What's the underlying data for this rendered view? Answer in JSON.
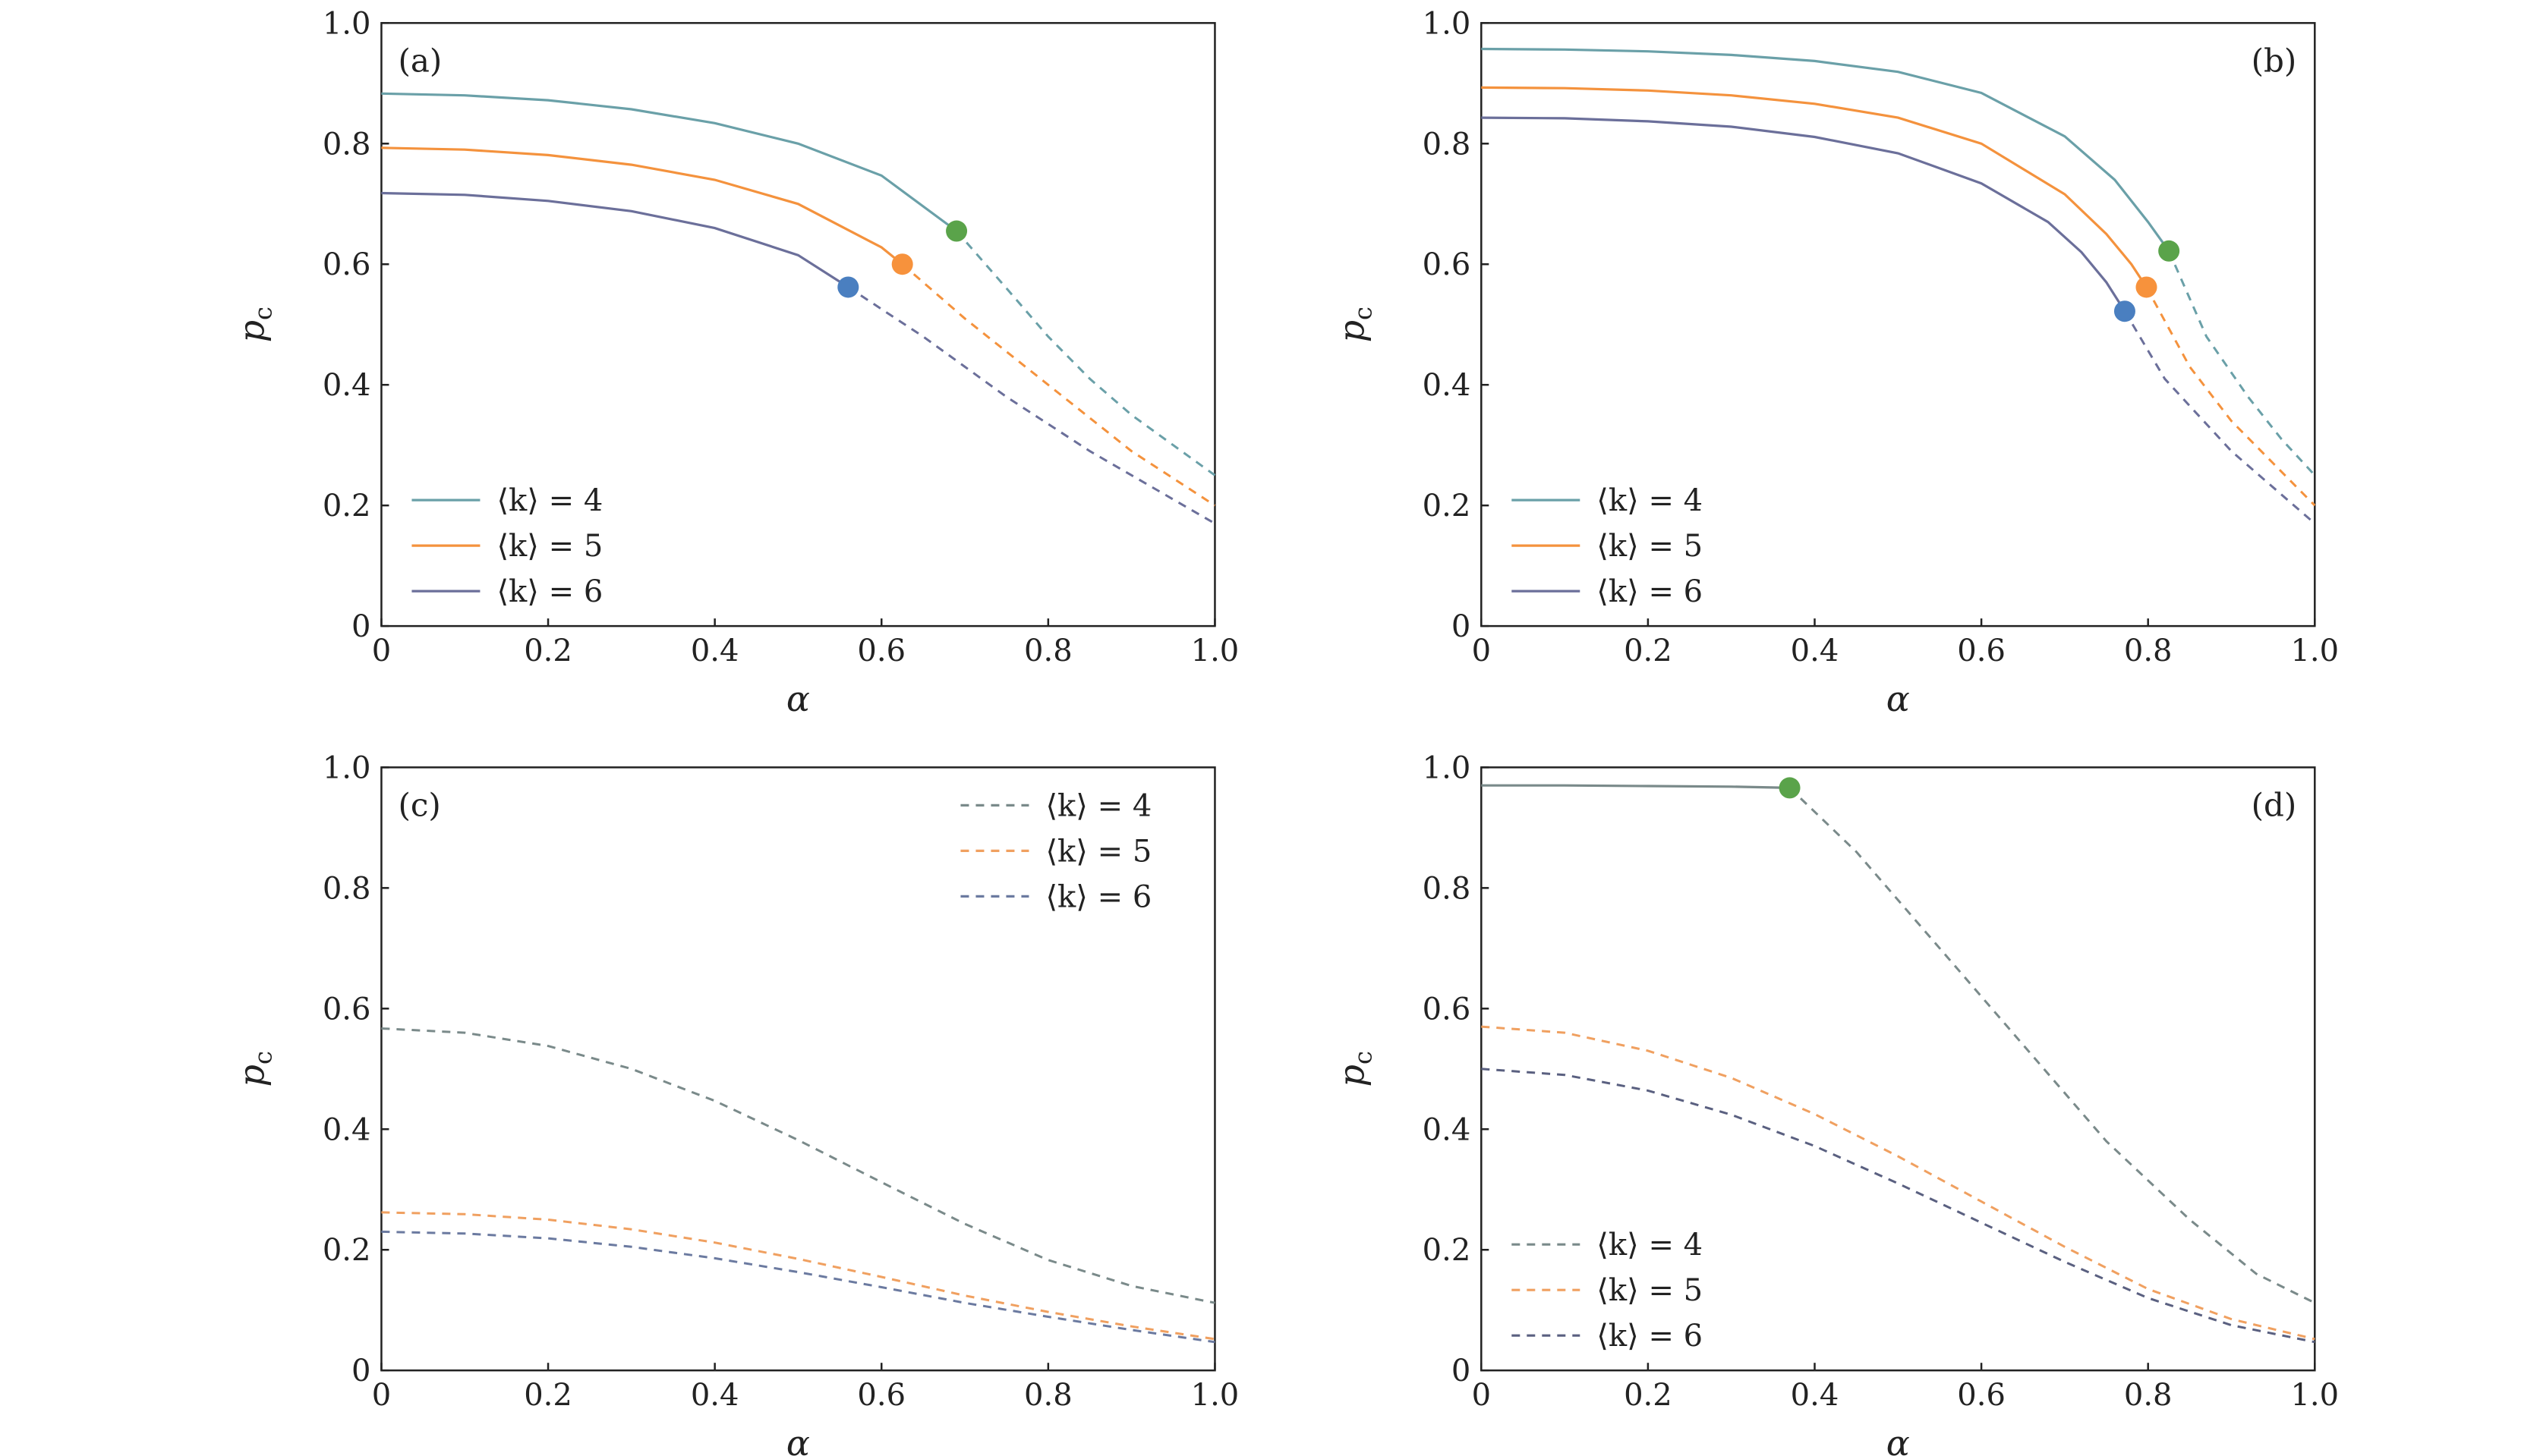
{
  "chart_data": [
    {
      "type": "line",
      "panel_label": "(a)",
      "xlabel": "α",
      "ylabel": "p",
      "ylabel_sub": "c",
      "xlim": [
        0,
        1.0
      ],
      "ylim": [
        0,
        1.0
      ],
      "xticks": [
        "0",
        "0.2",
        "0.4",
        "0.6",
        "0.8",
        "1.0"
      ],
      "yticks": [
        "0",
        "0.2",
        "0.4",
        "0.6",
        "0.8",
        "1.0"
      ],
      "legend_position": "bottom-left",
      "series": [
        {
          "name": "⟨k⟩ = 4",
          "color": "#6aa0a8",
          "solid": [
            [
              0,
              0.883
            ],
            [
              0.1,
              0.88
            ],
            [
              0.2,
              0.872
            ],
            [
              0.3,
              0.857
            ],
            [
              0.4,
              0.834
            ],
            [
              0.5,
              0.8
            ],
            [
              0.6,
              0.747
            ],
            [
              0.69,
              0.655
            ]
          ],
          "dashed": [
            [
              0.69,
              0.655
            ],
            [
              0.75,
              0.56
            ],
            [
              0.8,
              0.48
            ],
            [
              0.85,
              0.41
            ],
            [
              0.9,
              0.35
            ],
            [
              0.95,
              0.3
            ],
            [
              1.0,
              0.25
            ]
          ],
          "marker": {
            "x": 0.69,
            "y": 0.655,
            "color": "#5aa34a"
          }
        },
        {
          "name": "⟨k⟩ = 5",
          "color": "#f4923d",
          "solid": [
            [
              0,
              0.793
            ],
            [
              0.1,
              0.79
            ],
            [
              0.2,
              0.781
            ],
            [
              0.3,
              0.765
            ],
            [
              0.4,
              0.74
            ],
            [
              0.5,
              0.7
            ],
            [
              0.6,
              0.628
            ],
            [
              0.625,
              0.6
            ]
          ],
          "dashed": [
            [
              0.625,
              0.6
            ],
            [
              0.7,
              0.51
            ],
            [
              0.8,
              0.4
            ],
            [
              0.9,
              0.29
            ],
            [
              1.0,
              0.2
            ]
          ],
          "marker": {
            "x": 0.625,
            "y": 0.6,
            "color": "#f7923c"
          }
        },
        {
          "name": "⟨k⟩ = 6",
          "color": "#6b6f9a",
          "solid": [
            [
              0,
              0.718
            ],
            [
              0.1,
              0.715
            ],
            [
              0.2,
              0.705
            ],
            [
              0.3,
              0.688
            ],
            [
              0.4,
              0.66
            ],
            [
              0.5,
              0.615
            ],
            [
              0.56,
              0.562
            ]
          ],
          "dashed": [
            [
              0.56,
              0.562
            ],
            [
              0.65,
              0.48
            ],
            [
              0.75,
              0.38
            ],
            [
              0.85,
              0.29
            ],
            [
              1.0,
              0.17
            ]
          ],
          "marker": {
            "x": 0.56,
            "y": 0.562,
            "color": "#4a7fc0"
          }
        }
      ]
    },
    {
      "type": "line",
      "panel_label": "(b)",
      "xlabel": "α",
      "ylabel": "p",
      "ylabel_sub": "c",
      "xlim": [
        0,
        1.0
      ],
      "ylim": [
        0,
        1.0
      ],
      "xticks": [
        "0",
        "0.2",
        "0.4",
        "0.6",
        "0.8",
        "1.0"
      ],
      "yticks": [
        "0",
        "0.2",
        "0.4",
        "0.6",
        "0.8",
        "1.0"
      ],
      "legend_position": "bottom-left",
      "series": [
        {
          "name": "⟨k⟩ = 4",
          "color": "#6aa0a8",
          "solid": [
            [
              0,
              0.957
            ],
            [
              0.1,
              0.956
            ],
            [
              0.2,
              0.953
            ],
            [
              0.3,
              0.947
            ],
            [
              0.4,
              0.937
            ],
            [
              0.5,
              0.919
            ],
            [
              0.6,
              0.884
            ],
            [
              0.7,
              0.812
            ],
            [
              0.76,
              0.74
            ],
            [
              0.8,
              0.67
            ],
            [
              0.825,
              0.622
            ]
          ],
          "dashed": [
            [
              0.825,
              0.622
            ],
            [
              0.87,
              0.48
            ],
            [
              0.92,
              0.38
            ],
            [
              0.96,
              0.31
            ],
            [
              1.0,
              0.25
            ]
          ],
          "marker": {
            "x": 0.825,
            "y": 0.622,
            "color": "#5aa34a"
          }
        },
        {
          "name": "⟨k⟩ = 5",
          "color": "#f4923d",
          "solid": [
            [
              0,
              0.893
            ],
            [
              0.1,
              0.892
            ],
            [
              0.2,
              0.888
            ],
            [
              0.3,
              0.88
            ],
            [
              0.4,
              0.866
            ],
            [
              0.5,
              0.843
            ],
            [
              0.6,
              0.8
            ],
            [
              0.7,
              0.716
            ],
            [
              0.75,
              0.65
            ],
            [
              0.78,
              0.6
            ],
            [
              0.798,
              0.562
            ]
          ],
          "dashed": [
            [
              0.798,
              0.562
            ],
            [
              0.85,
              0.43
            ],
            [
              0.9,
              0.34
            ],
            [
              0.95,
              0.27
            ],
            [
              1.0,
              0.2
            ]
          ],
          "marker": {
            "x": 0.798,
            "y": 0.562,
            "color": "#f7923c"
          }
        },
        {
          "name": "⟨k⟩ = 6",
          "color": "#6b6f9a",
          "solid": [
            [
              0,
              0.843
            ],
            [
              0.1,
              0.842
            ],
            [
              0.2,
              0.837
            ],
            [
              0.3,
              0.828
            ],
            [
              0.4,
              0.811
            ],
            [
              0.5,
              0.784
            ],
            [
              0.6,
              0.734
            ],
            [
              0.68,
              0.67
            ],
            [
              0.72,
              0.62
            ],
            [
              0.75,
              0.57
            ],
            [
              0.772,
              0.522
            ]
          ],
          "dashed": [
            [
              0.772,
              0.522
            ],
            [
              0.82,
              0.41
            ],
            [
              0.9,
              0.29
            ],
            [
              1.0,
              0.17
            ]
          ],
          "marker": {
            "x": 0.772,
            "y": 0.522,
            "color": "#4a7fc0"
          }
        }
      ]
    },
    {
      "type": "line",
      "panel_label": "(c)",
      "xlabel": "α",
      "ylabel": "p",
      "ylabel_sub": "c",
      "xlim": [
        0,
        1.0
      ],
      "ylim": [
        0,
        1.0
      ],
      "xticks": [
        "0",
        "0.2",
        "0.4",
        "0.6",
        "0.8",
        "1.0"
      ],
      "yticks": [
        "0",
        "0.2",
        "0.4",
        "0.6",
        "0.8",
        "1.0"
      ],
      "legend_position": "top-right",
      "series": [
        {
          "name": "⟨k⟩ = 4",
          "color": "#7a8a8a",
          "solid": [],
          "dashed": [
            [
              0,
              0.567
            ],
            [
              0.1,
              0.56
            ],
            [
              0.2,
              0.538
            ],
            [
              0.3,
              0.5
            ],
            [
              0.4,
              0.447
            ],
            [
              0.5,
              0.382
            ],
            [
              0.6,
              0.312
            ],
            [
              0.7,
              0.243
            ],
            [
              0.8,
              0.183
            ],
            [
              0.9,
              0.14
            ],
            [
              1.0,
              0.112
            ]
          ],
          "marker": null
        },
        {
          "name": "⟨k⟩ = 5",
          "color": "#f0a060",
          "solid": [],
          "dashed": [
            [
              0,
              0.262
            ],
            [
              0.1,
              0.259
            ],
            [
              0.2,
              0.25
            ],
            [
              0.3,
              0.234
            ],
            [
              0.4,
              0.212
            ],
            [
              0.5,
              0.185
            ],
            [
              0.6,
              0.155
            ],
            [
              0.7,
              0.124
            ],
            [
              0.8,
              0.097
            ],
            [
              0.9,
              0.073
            ],
            [
              1.0,
              0.052
            ]
          ],
          "marker": null
        },
        {
          "name": "⟨k⟩ = 6",
          "color": "#6b7aa0",
          "solid": [],
          "dashed": [
            [
              0,
              0.23
            ],
            [
              0.1,
              0.227
            ],
            [
              0.2,
              0.219
            ],
            [
              0.3,
              0.205
            ],
            [
              0.4,
              0.186
            ],
            [
              0.5,
              0.163
            ],
            [
              0.6,
              0.138
            ],
            [
              0.7,
              0.112
            ],
            [
              0.8,
              0.089
            ],
            [
              0.9,
              0.067
            ],
            [
              1.0,
              0.047
            ]
          ],
          "marker": null
        }
      ]
    },
    {
      "type": "line",
      "panel_label": "(d)",
      "xlabel": "α",
      "ylabel": "p",
      "ylabel_sub": "c",
      "xlim": [
        0,
        1.0
      ],
      "ylim": [
        0,
        1.0
      ],
      "xticks": [
        "0",
        "0.2",
        "0.4",
        "0.6",
        "0.8",
        "1.0"
      ],
      "yticks": [
        "0",
        "0.2",
        "0.4",
        "0.6",
        "0.8",
        "1.0"
      ],
      "legend_position": "bottom-left",
      "series": [
        {
          "name": "⟨k⟩ = 4",
          "color": "#7a8a8a",
          "solid": [
            [
              0,
              0.97
            ],
            [
              0.1,
              0.97
            ],
            [
              0.2,
              0.969
            ],
            [
              0.3,
              0.968
            ],
            [
              0.37,
              0.966
            ]
          ],
          "dashed": [
            [
              0.37,
              0.966
            ],
            [
              0.45,
              0.86
            ],
            [
              0.55,
              0.7
            ],
            [
              0.65,
              0.54
            ],
            [
              0.75,
              0.38
            ],
            [
              0.85,
              0.25
            ],
            [
              0.93,
              0.16
            ],
            [
              1.0,
              0.112
            ]
          ],
          "marker": {
            "x": 0.37,
            "y": 0.966,
            "color": "#5aa34a"
          }
        },
        {
          "name": "⟨k⟩ = 5",
          "color": "#f0a060",
          "solid": [],
          "dashed": [
            [
              0,
              0.57
            ],
            [
              0.1,
              0.56
            ],
            [
              0.2,
              0.53
            ],
            [
              0.3,
              0.485
            ],
            [
              0.4,
              0.425
            ],
            [
              0.5,
              0.355
            ],
            [
              0.6,
              0.28
            ],
            [
              0.7,
              0.205
            ],
            [
              0.8,
              0.135
            ],
            [
              0.9,
              0.085
            ],
            [
              1.0,
              0.052
            ]
          ],
          "marker": null
        },
        {
          "name": "⟨k⟩ = 6",
          "color": "#5a6080",
          "solid": [],
          "dashed": [
            [
              0,
              0.5
            ],
            [
              0.1,
              0.49
            ],
            [
              0.2,
              0.464
            ],
            [
              0.3,
              0.424
            ],
            [
              0.4,
              0.372
            ],
            [
              0.5,
              0.31
            ],
            [
              0.6,
              0.245
            ],
            [
              0.7,
              0.18
            ],
            [
              0.8,
              0.12
            ],
            [
              0.9,
              0.075
            ],
            [
              1.0,
              0.047
            ]
          ],
          "marker": null
        }
      ]
    }
  ]
}
